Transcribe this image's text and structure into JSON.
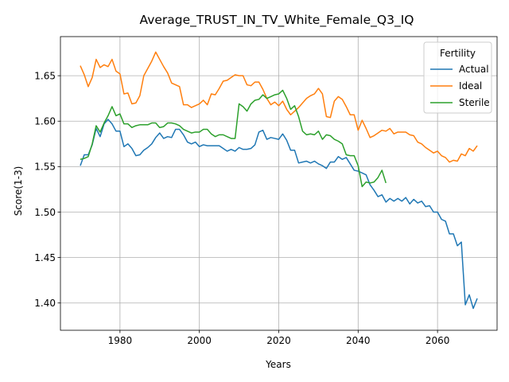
{
  "chart_data": {
    "type": "line",
    "title": "Average_TRUST_IN_TV_White_Female_Q3_IQ",
    "xlabel": "Years",
    "ylabel": "Score(1-3)",
    "xlim": [
      1965,
      2075
    ],
    "ylim": [
      1.37,
      1.693
    ],
    "xticks": [
      1980,
      2000,
      2020,
      2040,
      2060
    ],
    "yticks": [
      1.4,
      1.45,
      1.5,
      1.55,
      1.6,
      1.65
    ],
    "grid": true,
    "legend": {
      "title": "Fertility",
      "placement": "top-right"
    },
    "series": [
      {
        "name": "Actual",
        "color": "#1f77b4",
        "x": [
          1970,
          1971,
          1972,
          1973,
          1974,
          1975,
          1976,
          1977,
          1978,
          1979,
          1980,
          1981,
          1982,
          1983,
          1984,
          1985,
          1986,
          1987,
          1988,
          1989,
          1990,
          1991,
          1992,
          1993,
          1994,
          1995,
          1996,
          1997,
          1998,
          1999,
          2000,
          2001,
          2002,
          2003,
          2004,
          2005,
          2006,
          2007,
          2008,
          2009,
          2010,
          2011,
          2012,
          2013,
          2014,
          2015,
          2016,
          2017,
          2018,
          2019,
          2020,
          2021,
          2022,
          2023,
          2024,
          2025,
          2026,
          2027,
          2028,
          2029,
          2030,
          2031,
          2032,
          2033,
          2034,
          2035,
          2036,
          2037,
          2038,
          2039,
          2040,
          2041,
          2042,
          2043,
          2044,
          2045,
          2046,
          2047,
          2048,
          2049,
          2050,
          2051,
          2052,
          2053,
          2054,
          2055,
          2056,
          2057,
          2058,
          2059,
          2060,
          2061,
          2062,
          2063,
          2064,
          2065,
          2066,
          2067,
          2068,
          2069,
          2070
        ],
        "values": [
          1.551,
          1.563,
          1.563,
          1.574,
          1.592,
          1.583,
          1.597,
          1.602,
          1.597,
          1.589,
          1.589,
          1.572,
          1.575,
          1.57,
          1.562,
          1.563,
          1.568,
          1.571,
          1.575,
          1.582,
          1.587,
          1.581,
          1.583,
          1.582,
          1.591,
          1.591,
          1.585,
          1.577,
          1.575,
          1.577,
          1.572,
          1.574,
          1.573,
          1.573,
          1.573,
          1.573,
          1.57,
          1.567,
          1.569,
          1.567,
          1.571,
          1.569,
          1.569,
          1.57,
          1.574,
          1.588,
          1.59,
          1.58,
          1.582,
          1.581,
          1.58,
          1.586,
          1.579,
          1.568,
          1.568,
          1.554,
          1.555,
          1.556,
          1.554,
          1.556,
          1.553,
          1.551,
          1.548,
          1.555,
          1.555,
          1.561,
          1.558,
          1.56,
          1.553,
          1.546,
          1.545,
          1.543,
          1.541,
          1.53,
          1.524,
          1.517,
          1.519,
          1.511,
          1.515,
          1.512,
          1.515,
          1.512,
          1.516,
          1.509,
          1.514,
          1.51,
          1.512,
          1.506,
          1.507,
          1.5,
          1.5,
          1.492,
          1.49,
          1.476,
          1.476,
          1.463,
          1.467,
          1.398,
          1.409,
          1.394,
          1.405
        ]
      },
      {
        "name": "Ideal",
        "color": "#ff7f0e",
        "x": [
          1970,
          1971,
          1972,
          1973,
          1974,
          1975,
          1976,
          1977,
          1978,
          1979,
          1980,
          1981,
          1982,
          1983,
          1984,
          1985,
          1986,
          1987,
          1988,
          1989,
          1990,
          1991,
          1992,
          1993,
          1994,
          1995,
          1996,
          1997,
          1998,
          1999,
          2000,
          2001,
          2002,
          2003,
          2004,
          2005,
          2006,
          2007,
          2008,
          2009,
          2010,
          2011,
          2012,
          2013,
          2014,
          2015,
          2016,
          2017,
          2018,
          2019,
          2020,
          2021,
          2022,
          2023,
          2024,
          2025,
          2026,
          2027,
          2028,
          2029,
          2030,
          2031,
          2032,
          2033,
          2034,
          2035,
          2036,
          2037,
          2038,
          2039,
          2040,
          2041,
          2042,
          2043,
          2044,
          2045,
          2046,
          2047,
          2048,
          2049,
          2050,
          2051,
          2052,
          2053,
          2054,
          2055,
          2056,
          2057,
          2058,
          2059,
          2060,
          2061,
          2062,
          2063,
          2064,
          2065,
          2066,
          2067,
          2068,
          2069,
          2070
        ],
        "values": [
          1.661,
          1.651,
          1.638,
          1.648,
          1.668,
          1.659,
          1.662,
          1.66,
          1.668,
          1.655,
          1.652,
          1.63,
          1.631,
          1.619,
          1.62,
          1.628,
          1.65,
          1.658,
          1.666,
          1.676,
          1.668,
          1.66,
          1.653,
          1.642,
          1.64,
          1.638,
          1.618,
          1.618,
          1.615,
          1.617,
          1.619,
          1.623,
          1.618,
          1.63,
          1.629,
          1.636,
          1.644,
          1.645,
          1.648,
          1.651,
          1.65,
          1.65,
          1.64,
          1.639,
          1.643,
          1.643,
          1.635,
          1.625,
          1.618,
          1.621,
          1.617,
          1.622,
          1.613,
          1.607,
          1.611,
          1.615,
          1.62,
          1.625,
          1.628,
          1.63,
          1.636,
          1.63,
          1.605,
          1.604,
          1.622,
          1.627,
          1.624,
          1.616,
          1.607,
          1.607,
          1.59,
          1.601,
          1.592,
          1.582,
          1.584,
          1.587,
          1.59,
          1.589,
          1.592,
          1.586,
          1.588,
          1.588,
          1.588,
          1.585,
          1.584,
          1.577,
          1.575,
          1.571,
          1.568,
          1.565,
          1.567,
          1.562,
          1.56,
          1.555,
          1.557,
          1.556,
          1.564,
          1.562,
          1.57,
          1.567,
          1.573
        ]
      },
      {
        "name": "Sterile",
        "color": "#2ca02c",
        "x": [
          1970,
          1971,
          1972,
          1973,
          1974,
          1975,
          1976,
          1977,
          1978,
          1979,
          1980,
          1981,
          1982,
          1983,
          1984,
          1985,
          1986,
          1987,
          1988,
          1989,
          1990,
          1991,
          1992,
          1993,
          1994,
          1995,
          1996,
          1997,
          1998,
          1999,
          2000,
          2001,
          2002,
          2003,
          2004,
          2005,
          2006,
          2007,
          2008,
          2009,
          2010,
          2011,
          2012,
          2013,
          2014,
          2015,
          2016,
          2017,
          2018,
          2019,
          2020,
          2021,
          2022,
          2023,
          2024,
          2025,
          2026,
          2027,
          2028,
          2029,
          2030,
          2031,
          2032,
          2033,
          2034,
          2035,
          2036,
          2037,
          2038,
          2039,
          2040,
          2041,
          2042,
          2043,
          2044,
          2045,
          2046,
          2047
        ],
        "values": [
          1.558,
          1.559,
          1.561,
          1.575,
          1.595,
          1.588,
          1.598,
          1.606,
          1.616,
          1.606,
          1.608,
          1.597,
          1.597,
          1.593,
          1.595,
          1.596,
          1.596,
          1.596,
          1.598,
          1.598,
          1.593,
          1.594,
          1.598,
          1.598,
          1.597,
          1.595,
          1.591,
          1.589,
          1.587,
          1.588,
          1.588,
          1.591,
          1.591,
          1.586,
          1.583,
          1.585,
          1.585,
          1.583,
          1.581,
          1.581,
          1.619,
          1.616,
          1.611,
          1.619,
          1.623,
          1.624,
          1.629,
          1.625,
          1.627,
          1.629,
          1.63,
          1.634,
          1.625,
          1.613,
          1.617,
          1.605,
          1.589,
          1.585,
          1.586,
          1.585,
          1.589,
          1.58,
          1.585,
          1.584,
          1.58,
          1.578,
          1.575,
          1.563,
          1.562,
          1.562,
          1.551,
          1.528,
          1.533,
          1.532,
          1.533,
          1.538,
          1.546,
          1.532
        ]
      }
    ]
  }
}
